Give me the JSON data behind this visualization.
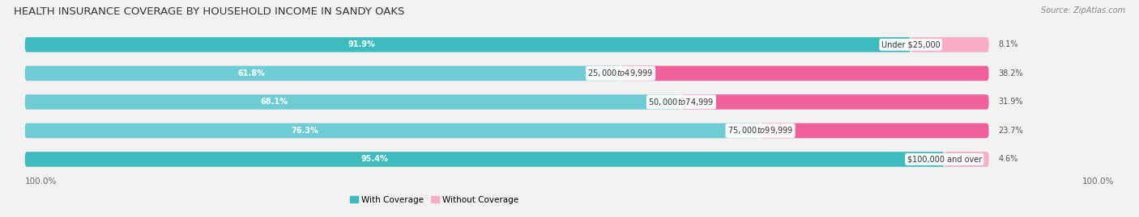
{
  "title": "HEALTH INSURANCE COVERAGE BY HOUSEHOLD INCOME IN SANDY OAKS",
  "source": "Source: ZipAtlas.com",
  "categories": [
    "Under $25,000",
    "$25,000 to $49,999",
    "$50,000 to $74,999",
    "$75,000 to $99,999",
    "$100,000 and over"
  ],
  "with_coverage": [
    91.9,
    61.8,
    68.1,
    76.3,
    95.4
  ],
  "without_coverage": [
    8.1,
    38.2,
    31.9,
    23.7,
    4.6
  ],
  "color_with": [
    "#3dbcbf",
    "#6ecdd4",
    "#6ecdd4",
    "#6ecdd4",
    "#3dbcbf"
  ],
  "color_without": [
    "#f8adc4",
    "#f0609a",
    "#f0609a",
    "#f0609a",
    "#f8adc4"
  ],
  "legend_with_color": "#3dbcbf",
  "legend_without_color": "#f8adc4",
  "bg_color": "#f2f2f2",
  "bar_bg_color": "#e0e0e0",
  "x_left_label": "100.0%",
  "x_right_label": "100.0%",
  "title_fontsize": 9.5,
  "source_fontsize": 7,
  "label_fontsize": 7.5,
  "category_fontsize": 7,
  "value_fontsize": 7,
  "legend_fontsize": 7.5
}
